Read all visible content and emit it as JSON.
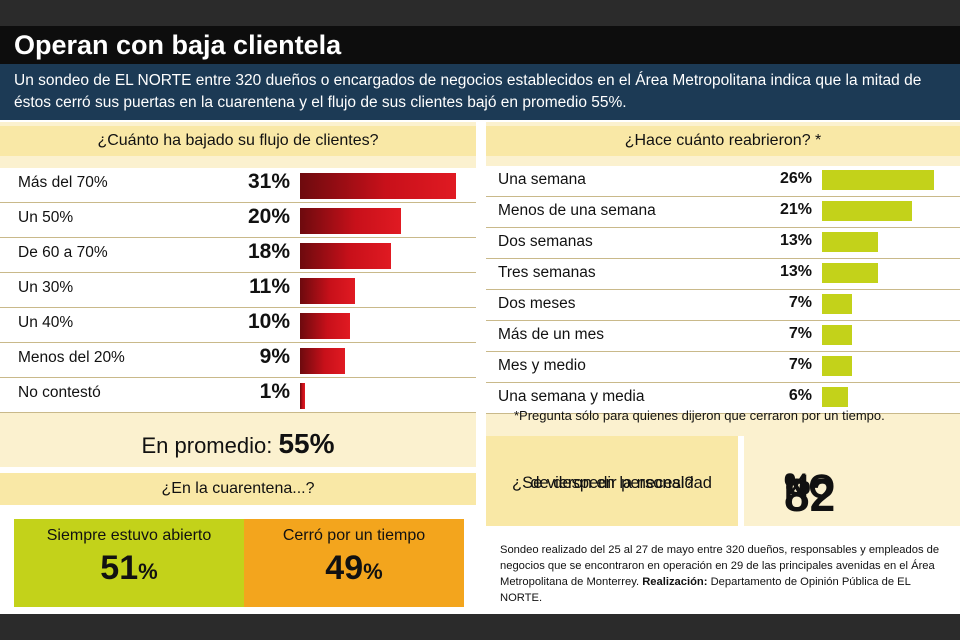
{
  "title": "Operan con baja clientela",
  "intro": "Un sondeo de EL NORTE entre 320 dueños o encargados de negocios establecidos en el Área Metropolitana indica que la mitad de éstos cerró sus puertas en la cuarentena y el flujo de sus clientes bajó en promedio 55%.",
  "q1": {
    "title": "¿Cuánto ha bajado su flujo de clientes?",
    "average_label": "En promedio:",
    "average_value": "55%"
  },
  "q2": {
    "title": "¿Hace cuánto reabrieron? *",
    "note": "*Pregunta sólo para quienes dijeron que cerraron por un tiempo."
  },
  "q3": {
    "title": "¿En la cuarentena...?",
    "open_label": "Siempre estuvo abierto",
    "open_value": "51",
    "closed_label": "Cerró por un tiempo",
    "closed_value": "49",
    "unit": "%"
  },
  "q4": {
    "title_line1": "¿Se vieron en la necesidad",
    "title_line2": "de despedir personal?",
    "answer": "NO",
    "value": "82",
    "unit": "%"
  },
  "footer": {
    "text": "Sondeo realizado del 25 al 27 de mayo entre 320 dueños, responsables y empleados de negocios que se encontraron en operación en 29 de las principales avenidas en el Área Metropolitana de Monterrey.",
    "credit_label": "Realización:",
    "credit": "Departamento de Opinión Pública de EL NORTE."
  },
  "colors": {
    "bar_red": "#c8101a",
    "bar_green": "#c3d21a",
    "open_box": "#c3d21a",
    "closed_box": "#f3a51d",
    "header_bg": "#1c3a55"
  },
  "chart_data": [
    {
      "type": "bar",
      "title": "¿Cuánto ha bajado su flujo de clientes?",
      "categories": [
        "Más del 70%",
        "Un 50%",
        "De 60 a 70%",
        "Un 30%",
        "Un 40%",
        "Menos del 20%",
        "No contestó"
      ],
      "values": [
        31,
        20,
        18,
        11,
        10,
        9,
        1
      ],
      "labels": [
        "31%",
        "20%",
        "18%",
        "11%",
        "10%",
        "9%",
        "1%"
      ]
    },
    {
      "type": "bar",
      "title": "¿Hace cuánto reabrieron? *",
      "categories": [
        "Una semana",
        "Menos de una semana",
        "Dos semanas",
        "Tres semanas",
        "Dos meses",
        "Más de un mes",
        "Mes y medio",
        "Una semana y media"
      ],
      "values": [
        26,
        21,
        13,
        13,
        7,
        7,
        7,
        6
      ],
      "labels": [
        "26%",
        "21%",
        "13%",
        "13%",
        "7%",
        "7%",
        "7%",
        "6%"
      ]
    }
  ]
}
